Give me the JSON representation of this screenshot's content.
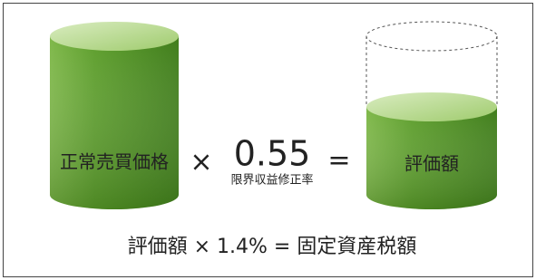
{
  "left_cylinder": {
    "label": "正常売買価格"
  },
  "operator_multiply": "×",
  "factor": {
    "value": "0.55",
    "caption": "限界収益修正率"
  },
  "operator_equals": "=",
  "right_cylinder": {
    "label": "評価額"
  },
  "formula": "評価額 × 1.4% = 固定資産税額"
}
